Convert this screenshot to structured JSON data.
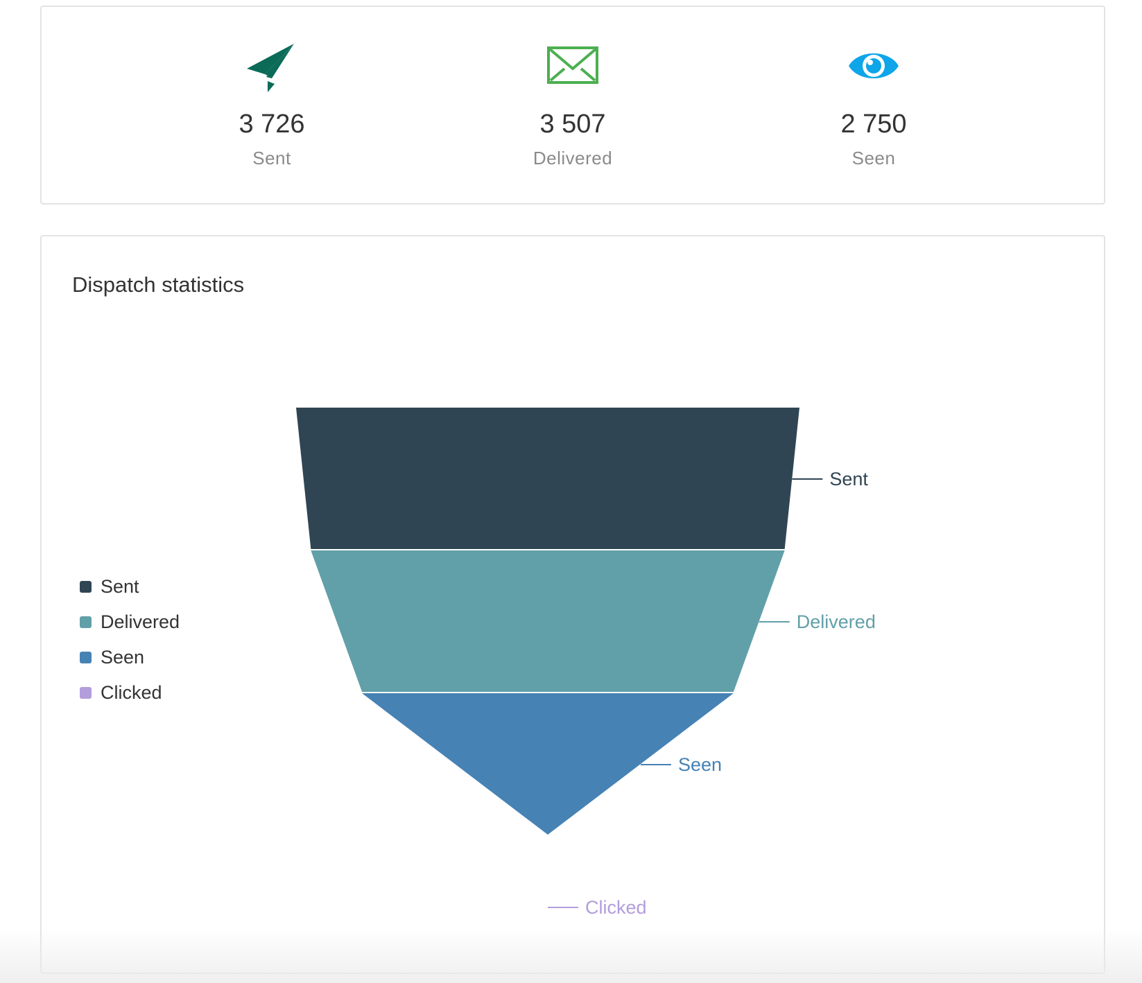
{
  "summary": {
    "items": [
      {
        "value": "3 726",
        "label": "Sent",
        "icon": "paper-plane-icon",
        "color": "#0b6b57"
      },
      {
        "value": "3 507",
        "label": "Delivered",
        "icon": "envelope-icon",
        "color": "#4caf50"
      },
      {
        "value": "2 750",
        "label": "Seen",
        "icon": "eye-icon",
        "color": "#0ea5e9"
      }
    ]
  },
  "chart": {
    "title": "Dispatch statistics"
  },
  "chart_data": {
    "type": "funnel",
    "title": "Dispatch statistics",
    "categories": [
      "Sent",
      "Delivered",
      "Seen",
      "Clicked"
    ],
    "values": [
      3726,
      3507,
      2750,
      0
    ],
    "colors": [
      "#304553",
      "#61a0a8",
      "#4682b4",
      "#b39ddb"
    ],
    "legend": {
      "position": "left",
      "entries": [
        "Sent",
        "Delivered",
        "Seen",
        "Clicked"
      ]
    },
    "labels_position": "right"
  }
}
